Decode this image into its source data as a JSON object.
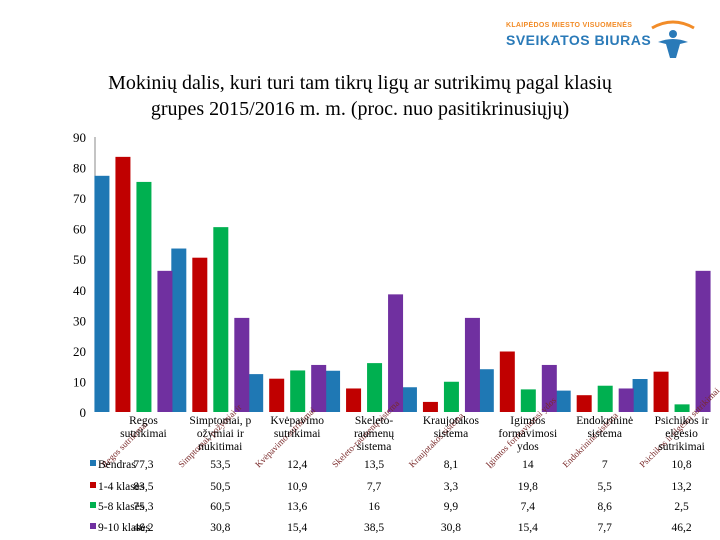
{
  "logo": {
    "line1": "KLAIPĖDOS MIESTO VISUOMENĖS",
    "line2": "SVEIKATOS BIURAS",
    "icon": "health-bureau-logo-icon"
  },
  "title_line1": "Mokinių dalis, kuri turi tam tikrų ligų ar sutrikimų pagal klasių",
  "title_line2": "grupes 2015/2016 m. m. (proc. nuo pasitikrinusiųjų)",
  "chart_data": {
    "type": "bar",
    "ylim": [
      0,
      90
    ],
    "yticks": [
      0,
      10,
      20,
      30,
      40,
      50,
      60,
      70,
      80,
      90
    ],
    "grid": false,
    "legend": "table-left",
    "categories": [
      [
        "Regos",
        "sutrikimai"
      ],
      [
        "Simptomai, p",
        "ožymiai ir",
        "nukitimai"
      ],
      [
        "Kvėpavimo",
        "sutrikimai"
      ],
      [
        "Skeleto-",
        "raumenų",
        "sistema"
      ],
      [
        "Kraujotakos",
        "sistema"
      ],
      [
        "Igimtos",
        "formavimosi",
        "ydos"
      ],
      [
        "Endokrininė",
        "sistema"
      ],
      [
        "Psichikos ir",
        "elgesio",
        "sutrikimai"
      ]
    ],
    "rotated_labels": [
      "Regos sutrikimai",
      "Simptomai, požymiai ir",
      "Kvėpavimo sutrikimai",
      "Skeleto-raumenų sistema",
      "Kraujotakos sistema",
      "Įgimtos formavimosi ydos",
      "Endokrininė sistema",
      "Psichikos ir elgesio sutrikimai"
    ],
    "series": [
      {
        "name": "Bendras",
        "color": "#1f78b4",
        "values": [
          77.3,
          53.5,
          12.4,
          13.5,
          8.1,
          14,
          7,
          10.8
        ],
        "labels": [
          "77,3",
          "53,5",
          "12,4",
          "13,5",
          "8,1",
          "14",
          "7",
          "10,8"
        ]
      },
      {
        "name": "1-4 klasės",
        "color": "#c00000",
        "values": [
          83.5,
          50.5,
          10.9,
          7.7,
          3.3,
          19.8,
          5.5,
          13.2
        ],
        "labels": [
          "83,5",
          "50,5",
          "10,9",
          "7,7",
          "3,3",
          "19,8",
          "5,5",
          "13,2"
        ]
      },
      {
        "name": "5-8 klasės",
        "color": "#00b050",
        "values": [
          75.3,
          60.5,
          13.6,
          16,
          9.9,
          7.4,
          8.6,
          2.5
        ],
        "labels": [
          "75,3",
          "60,5",
          "13,6",
          "16",
          "9,9",
          "7,4",
          "8,6",
          "2,5"
        ]
      },
      {
        "name": "9-10 klasės",
        "color": "#7030a0",
        "values": [
          46.2,
          30.8,
          15.4,
          38.5,
          30.8,
          15.4,
          7.7,
          46.2
        ],
        "labels": [
          "46,2",
          "30,8",
          "15,4",
          "38,5",
          "30,8",
          "15,4",
          "7,7",
          "46,2"
        ]
      }
    ]
  }
}
